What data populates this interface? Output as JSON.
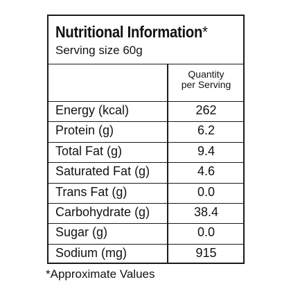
{
  "header": {
    "title": "Nutritional Information",
    "title_marker": "*",
    "serving_size": "Serving size 60g"
  },
  "table": {
    "column_header_line1": "Quantity",
    "column_header_line2": "per Serving",
    "rows": [
      {
        "label": "Energy (kcal)",
        "value": "262"
      },
      {
        "label": "Protein (g)",
        "value": "6.2"
      },
      {
        "label": "Total Fat (g)",
        "value": "9.4"
      },
      {
        "label": "Saturated Fat (g)",
        "value": "4.6"
      },
      {
        "label": "Trans Fat (g)",
        "value": "0.0"
      },
      {
        "label": "Carbohydrate (g)",
        "value": "38.4"
      },
      {
        "label": "Sugar (g)",
        "value": "0.0"
      },
      {
        "label": "Sodium (mg)",
        "value": "915"
      }
    ]
  },
  "footnote": "*Approximate Values"
}
